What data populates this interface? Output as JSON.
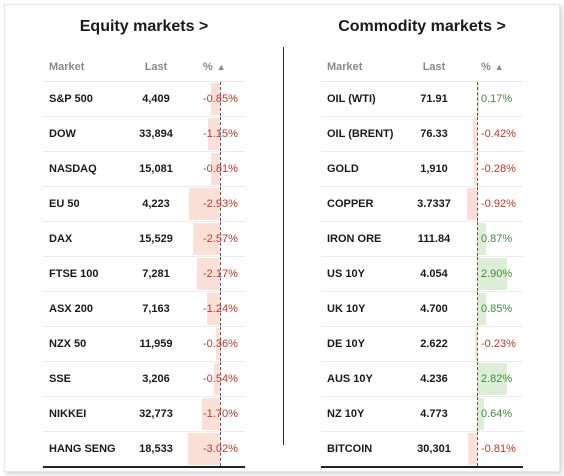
{
  "colors": {
    "negative": "#c0392b",
    "positive": "#3f8f3a",
    "neg_bar": "#fbe0d8",
    "pos_bar": "#dcefd6"
  },
  "equity": {
    "title": "Equity markets >",
    "headers": {
      "market": "Market",
      "last": "Last",
      "pct": "%",
      "sort_icon": "▲"
    },
    "rows": [
      {
        "market": "S&P 500",
        "last": "4,409",
        "pct": "-0.85%",
        "value": -0.85
      },
      {
        "market": "DOW",
        "last": "33,894",
        "pct": "-1.15%",
        "value": -1.15
      },
      {
        "market": "NASDAQ",
        "last": "15,081",
        "pct": "-0.81%",
        "value": -0.81
      },
      {
        "market": "EU 50",
        "last": "4,223",
        "pct": "-2.93%",
        "value": -2.93
      },
      {
        "market": "DAX",
        "last": "15,529",
        "pct": "-2.57%",
        "value": -2.57
      },
      {
        "market": "FTSE 100",
        "last": "7,281",
        "pct": "-2.17%",
        "value": -2.17
      },
      {
        "market": "ASX 200",
        "last": "7,163",
        "pct": "-1.24%",
        "value": -1.24
      },
      {
        "market": "NZX 50",
        "last": "11,959",
        "pct": "-0.36%",
        "value": -0.36
      },
      {
        "market": "SSE",
        "last": "3,206",
        "pct": "-0.54%",
        "value": -0.54
      },
      {
        "market": "NIKKEI",
        "last": "32,773",
        "pct": "-1.70%",
        "value": -1.7
      },
      {
        "market": "HANG SENG",
        "last": "18,533",
        "pct": "-3.02%",
        "value": -3.02
      }
    ]
  },
  "commodity": {
    "title": "Commodity markets >",
    "headers": {
      "market": "Market",
      "last": "Last",
      "pct": "%",
      "sort_icon": "▲"
    },
    "rows": [
      {
        "market": "OIL (WTI)",
        "last": "71.91",
        "pct": "0.17%",
        "value": 0.17
      },
      {
        "market": "OIL (BRENT)",
        "last": "76.33",
        "pct": "-0.42%",
        "value": -0.42
      },
      {
        "market": "GOLD",
        "last": "1,910",
        "pct": "-0.28%",
        "value": -0.28
      },
      {
        "market": "COPPER",
        "last": "3.7337",
        "pct": "-0.92%",
        "value": -0.92
      },
      {
        "market": "IRON ORE",
        "last": "111.84",
        "pct": "0.87%",
        "value": 0.87
      },
      {
        "market": "US 10Y",
        "last": "4.054",
        "pct": "2.90%",
        "value": 2.9
      },
      {
        "market": "UK 10Y",
        "last": "4.700",
        "pct": "0.85%",
        "value": 0.85
      },
      {
        "market": "DE 10Y",
        "last": "2.622",
        "pct": "-0.23%",
        "value": -0.23
      },
      {
        "market": "AUS 10Y",
        "last": "4.236",
        "pct": "2.82%",
        "value": 2.82
      },
      {
        "market": "NZ 10Y",
        "last": "4.773",
        "pct": "0.64%",
        "value": 0.64
      },
      {
        "market": "BITCOIN",
        "last": "30,301",
        "pct": "-0.81%",
        "value": -0.81
      }
    ]
  }
}
